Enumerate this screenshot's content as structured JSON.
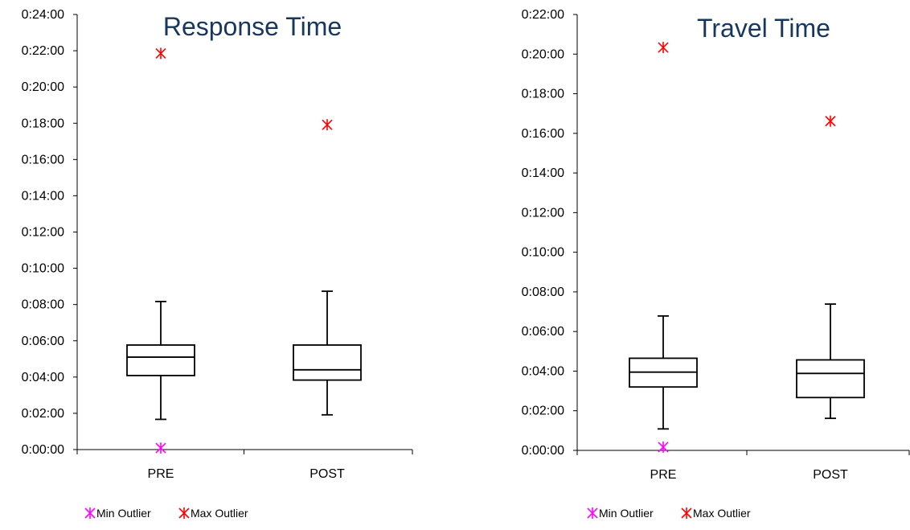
{
  "colors": {
    "min_outlier": "#ff00ff",
    "max_outlier": "#ff0000",
    "title": "#17375e",
    "axis": "#000000"
  },
  "legend": {
    "min_label": "Min Outlier",
    "max_label": "Max Outlier"
  },
  "chart_data": [
    {
      "type": "box",
      "title": "Response Time",
      "categories": [
        "PRE",
        "POST"
      ],
      "y_unit": "seconds (shown as h:mm:ss)",
      "ylim": [
        0,
        1440
      ],
      "ytick_step": 120,
      "ytick_labels": [
        "0:00:00",
        "0:02:00",
        "0:04:00",
        "0:06:00",
        "0:08:00",
        "0:10:00",
        "0:12:00",
        "0:14:00",
        "0:16:00",
        "0:18:00",
        "0:20:00",
        "0:22:00",
        "0:24:00"
      ],
      "boxes": [
        {
          "category": "PRE",
          "whisker_low": 100,
          "q1": 245,
          "median": 306,
          "q3": 346,
          "whisker_high": 490,
          "min_outlier": 5,
          "max_outlier": 1311
        },
        {
          "category": "POST",
          "whisker_low": 115,
          "q1": 230,
          "median": 264,
          "q3": 346,
          "whisker_high": 524,
          "min_outlier": null,
          "max_outlier": 1075
        }
      ],
      "legend": [
        "Min Outlier",
        "Max Outlier"
      ]
    },
    {
      "type": "box",
      "title": "Travel Time",
      "categories": [
        "PRE",
        "POST"
      ],
      "y_unit": "seconds (shown as h:mm:ss)",
      "ylim": [
        0,
        1320
      ],
      "ytick_step": 120,
      "ytick_labels": [
        "0:00:00",
        "0:02:00",
        "0:04:00",
        "0:06:00",
        "0:08:00",
        "0:10:00",
        "0:12:00",
        "0:14:00",
        "0:16:00",
        "0:18:00",
        "0:20:00",
        "0:22:00"
      ],
      "boxes": [
        {
          "category": "PRE",
          "whisker_low": 65,
          "q1": 192,
          "median": 237,
          "q3": 279,
          "whisker_high": 407,
          "min_outlier": 10,
          "max_outlier": 1220
        },
        {
          "category": "POST",
          "whisker_low": 97,
          "q1": 160,
          "median": 233,
          "q3": 274,
          "whisker_high": 443,
          "min_outlier": null,
          "max_outlier": 997
        }
      ],
      "legend": [
        "Min Outlier",
        "Max Outlier"
      ]
    }
  ]
}
